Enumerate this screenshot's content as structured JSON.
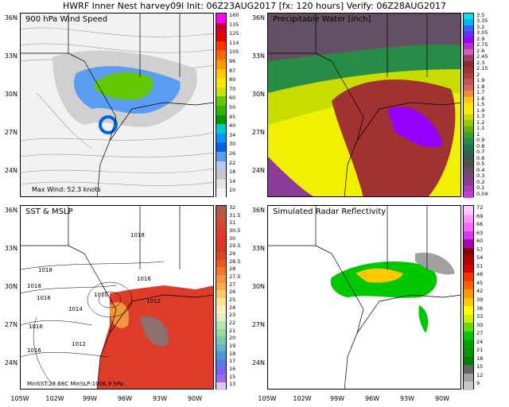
{
  "header": {
    "title": "HWRF Inner Nest harvey09l Init: 06Z23AUG2017 [fx: 120 hours] Verify: 06Z28AUG2017"
  },
  "panels": [
    {
      "title": "900 hPa Wind Speed",
      "note": "Max Wind: 52.3 knots"
    },
    {
      "title": "Precipitable Water [inch]"
    },
    {
      "title": "SST & MSLP",
      "note": "MinSST:28.68C   MinSLP:1006.9 hPa"
    },
    {
      "title": "Simulated Radar Reflectivity"
    }
  ],
  "axes": {
    "lat_labels": [
      "36N",
      "33N",
      "30N",
      "27N",
      "24N"
    ],
    "lon_labels": [
      "105W",
      "102W",
      "99W",
      "96W",
      "93W",
      "90W"
    ]
  },
  "colorbars": {
    "wind": {
      "labels": [
        "160",
        "135",
        "125",
        "114",
        "105",
        "96",
        "87",
        "80",
        "70",
        "60",
        "50",
        "45",
        "40",
        "34",
        "30",
        "26",
        "22",
        "18",
        "14",
        "10"
      ],
      "colors": [
        "#ff00ff",
        "#c80032",
        "#e60000",
        "#ff3200",
        "#ff6400",
        "#ff9600",
        "#ffc800",
        "#ffe600",
        "#c8e600",
        "#64c800",
        "#32b400",
        "#009600",
        "#00c8c8",
        "#0096ff",
        "#0064e6",
        "#5a9cf0",
        "#b4c8f0",
        "#c8c8c8",
        "#e6e6e6",
        "#f5f5f5"
      ]
    },
    "pw": {
      "labels": [
        "3.5",
        "3.35",
        "3.2",
        "3.05",
        "2.9",
        "2.75",
        "2.6",
        "2.45",
        "2.3",
        "2.15",
        "2",
        "1.9",
        "1.8",
        "1.7",
        "1.6",
        "1.5",
        "1.4",
        "1.3",
        "1.2",
        "1.1",
        "1",
        "0.9",
        "0.8",
        "0.7",
        "0.6",
        "0.5",
        "0.4",
        "0.3",
        "0.2",
        "0.1",
        "0.04"
      ],
      "colors": [
        "#00e6e6",
        "#00b4ff",
        "#3264ff",
        "#6432ff",
        "#9600ff",
        "#b432c8",
        "#c864b4",
        "#a03c64",
        "#8c2828",
        "#a03232",
        "#b43c3c",
        "#c85050",
        "#dc6464",
        "#f08c3c",
        "#ffc800",
        "#ffe600",
        "#f0f000",
        "#c8dc00",
        "#96c800",
        "#64b400",
        "#3ca032",
        "#288c46",
        "#1e7850",
        "#2d6450",
        "#3c5a46",
        "#505050",
        "#645064",
        "#7a4678",
        "#8c3c96",
        "#aa3cb4",
        "#c83cdc"
      ]
    },
    "sst": {
      "labels": [
        "32",
        "31.5",
        "31",
        "30.5",
        "30",
        "29.5",
        "29",
        "28.5",
        "28",
        "27.5",
        "27",
        "26",
        "25",
        "24",
        "23",
        "22",
        "21",
        "20",
        "19",
        "18",
        "17",
        "16",
        "15",
        "13"
      ],
      "colors": [
        "#b45a46",
        "#c8503c",
        "#d24632",
        "#dc3c28",
        "#e63228",
        "#d23c1e",
        "#dc461e",
        "#e65a1e",
        "#f0782d",
        "#f5963c",
        "#faaa50",
        "#ffc864",
        "#ffe696",
        "#fff0b4",
        "#dcf0c8",
        "#b4e6b4",
        "#96dc96",
        "#78c8b4",
        "#64b4c8",
        "#5096dc",
        "#5a78e6",
        "#7864f0",
        "#a064f0",
        "#dcc8f0"
      ]
    },
    "dbz": {
      "labels": [
        "72",
        "69",
        "66",
        "63",
        "60",
        "57",
        "54",
        "51",
        "48",
        "45",
        "42",
        "39",
        "36",
        "33",
        "30",
        "27",
        "24",
        "21",
        "18",
        "15",
        "12",
        "9"
      ],
      "colors": [
        "#ffc8ff",
        "#ff96ff",
        "#ff64ff",
        "#dc32ff",
        "#b400b4",
        "#8c0000",
        "#b40000",
        "#dc0000",
        "#ff3200",
        "#ff6400",
        "#ff9600",
        "#ffc800",
        "#ffff00",
        "#c8f000",
        "#64dc00",
        "#00c800",
        "#00a000",
        "#009600",
        "#008200",
        "#646464",
        "#a0a0a0",
        "#c8c8c8"
      ]
    }
  },
  "isobars": [
    "1018",
    "1018",
    "1016",
    "1018",
    "1014",
    "1016",
    "1010",
    "1012",
    "1016",
    "1016",
    "1012"
  ]
}
